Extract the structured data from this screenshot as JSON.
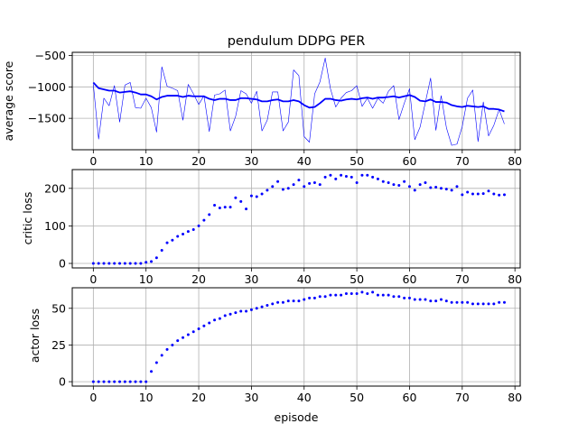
{
  "chart_data": [
    {
      "type": "line",
      "title": "pendulum DDPG PER",
      "xlabel": "",
      "ylabel": "average score",
      "xlim": [
        -4,
        81
      ],
      "ylim": [
        -2000,
        -450
      ],
      "xticks": [
        0,
        10,
        20,
        30,
        40,
        50,
        60,
        70,
        80
      ],
      "yticks": [
        -1500,
        -1000,
        -500
      ],
      "grid": true,
      "color": "#0000ff",
      "x": [
        0,
        1,
        2,
        3,
        4,
        5,
        6,
        7,
        8,
        9,
        10,
        11,
        12,
        13,
        14,
        15,
        16,
        17,
        18,
        19,
        20,
        21,
        22,
        23,
        24,
        25,
        26,
        27,
        28,
        29,
        30,
        31,
        32,
        33,
        34,
        35,
        36,
        37,
        38,
        39,
        40,
        41,
        42,
        43,
        44,
        45,
        46,
        47,
        48,
        49,
        50,
        51,
        52,
        53,
        54,
        55,
        56,
        57,
        58,
        59,
        60,
        61,
        62,
        63,
        64,
        65,
        66,
        67,
        68,
        69,
        70,
        71,
        72,
        73,
        74,
        75,
        76,
        77,
        78
      ],
      "series": [
        {
          "style": "thin-line",
          "values": [
            -960,
            -1830,
            -1180,
            -1300,
            -980,
            -1560,
            -970,
            -930,
            -1330,
            -1340,
            -1180,
            -1330,
            -1720,
            -680,
            -990,
            -1020,
            -1060,
            -1530,
            -960,
            -1110,
            -1280,
            -1140,
            -1710,
            -1130,
            -1110,
            -1050,
            -1700,
            -1470,
            -1060,
            -1110,
            -1260,
            -1070,
            -1700,
            -1530,
            -1080,
            -1080,
            -1700,
            -1560,
            -730,
            -820,
            -1790,
            -1880,
            -1110,
            -920,
            -540,
            -1030,
            -1320,
            -1180,
            -1090,
            -1060,
            -980,
            -1310,
            -1180,
            -1340,
            -1180,
            -1260,
            -1070,
            -980,
            -1520,
            -1260,
            -1030,
            -1840,
            -1640,
            -1250,
            -860,
            -1690,
            -1140,
            -1650,
            -1930,
            -1910,
            -1630,
            -1180,
            -1050,
            -1870,
            -1240,
            -1780,
            -1610,
            -1360,
            -1590
          ]
        },
        {
          "style": "thick-line",
          "values": [
            -930,
            -1020,
            -1040,
            -1060,
            -1060,
            -1090,
            -1080,
            -1070,
            -1090,
            -1120,
            -1120,
            -1150,
            -1200,
            -1160,
            -1140,
            -1140,
            -1140,
            -1160,
            -1140,
            -1150,
            -1150,
            -1150,
            -1190,
            -1210,
            -1190,
            -1190,
            -1210,
            -1210,
            -1180,
            -1180,
            -1190,
            -1200,
            -1230,
            -1230,
            -1210,
            -1200,
            -1230,
            -1230,
            -1210,
            -1230,
            -1290,
            -1330,
            -1320,
            -1260,
            -1190,
            -1190,
            -1210,
            -1220,
            -1200,
            -1190,
            -1200,
            -1180,
            -1170,
            -1190,
            -1170,
            -1170,
            -1160,
            -1150,
            -1170,
            -1150,
            -1130,
            -1160,
            -1220,
            -1230,
            -1200,
            -1240,
            -1240,
            -1250,
            -1290,
            -1310,
            -1320,
            -1300,
            -1310,
            -1320,
            -1310,
            -1350,
            -1350,
            -1360,
            -1390
          ]
        }
      ]
    },
    {
      "type": "scatter",
      "title": "",
      "xlabel": "",
      "ylabel": "critic loss",
      "xlim": [
        -4,
        81
      ],
      "ylim": [
        -12,
        250
      ],
      "xticks": [
        0,
        10,
        20,
        30,
        40,
        50,
        60,
        70,
        80
      ],
      "yticks": [
        0,
        100,
        200
      ],
      "grid": true,
      "color": "#0000ff",
      "x": [
        0,
        1,
        2,
        3,
        4,
        5,
        6,
        7,
        8,
        9,
        10,
        11,
        12,
        13,
        14,
        15,
        16,
        17,
        18,
        19,
        20,
        21,
        22,
        23,
        24,
        25,
        26,
        27,
        28,
        29,
        30,
        31,
        32,
        33,
        34,
        35,
        36,
        37,
        38,
        39,
        40,
        41,
        42,
        43,
        44,
        45,
        46,
        47,
        48,
        49,
        50,
        51,
        52,
        53,
        54,
        55,
        56,
        57,
        58,
        59,
        60,
        61,
        62,
        63,
        64,
        65,
        66,
        67,
        68,
        69,
        70,
        71,
        72,
        73,
        74,
        75,
        76,
        77,
        78
      ],
      "values": [
        0,
        0,
        0,
        0,
        0,
        0,
        0,
        0,
        0,
        0,
        3,
        5,
        15,
        35,
        55,
        62,
        72,
        78,
        85,
        90,
        100,
        115,
        130,
        155,
        148,
        150,
        150,
        175,
        165,
        145,
        180,
        178,
        185,
        195,
        205,
        218,
        197,
        200,
        210,
        222,
        205,
        213,
        215,
        210,
        230,
        235,
        225,
        235,
        232,
        230,
        215,
        235,
        235,
        230,
        225,
        218,
        215,
        210,
        208,
        218,
        205,
        195,
        210,
        215,
        202,
        203,
        200,
        198,
        195,
        205,
        183,
        190,
        185,
        185,
        186,
        193,
        185,
        182,
        183
      ]
    },
    {
      "type": "scatter",
      "title": "",
      "xlabel": "episode",
      "ylabel": "actor loss",
      "xlim": [
        -4,
        81
      ],
      "ylim": [
        -3,
        64
      ],
      "xticks": [
        0,
        10,
        20,
        30,
        40,
        50,
        60,
        70,
        80
      ],
      "yticks": [
        0,
        25,
        50
      ],
      "grid": true,
      "color": "#0000ff",
      "x": [
        0,
        1,
        2,
        3,
        4,
        5,
        6,
        7,
        8,
        9,
        10,
        11,
        12,
        13,
        14,
        15,
        16,
        17,
        18,
        19,
        20,
        21,
        22,
        23,
        24,
        25,
        26,
        27,
        28,
        29,
        30,
        31,
        32,
        33,
        34,
        35,
        36,
        37,
        38,
        39,
        40,
        41,
        42,
        43,
        44,
        45,
        46,
        47,
        48,
        49,
        50,
        51,
        52,
        53,
        54,
        55,
        56,
        57,
        58,
        59,
        60,
        61,
        62,
        63,
        64,
        65,
        66,
        67,
        68,
        69,
        70,
        71,
        72,
        73,
        74,
        75,
        76,
        77,
        78
      ],
      "values": [
        0,
        0,
        0,
        0,
        0,
        0,
        0,
        0,
        0,
        0,
        0,
        7,
        13,
        18,
        22,
        25,
        28,
        30,
        32,
        34,
        36,
        38,
        40,
        42,
        43,
        45,
        46,
        47,
        48,
        48,
        49,
        50,
        51,
        52,
        53,
        54,
        54,
        55,
        55,
        55,
        56,
        57,
        57,
        58,
        58,
        59,
        59,
        59,
        60,
        60,
        60,
        61,
        60,
        61,
        59,
        59,
        59,
        58,
        58,
        57,
        57,
        56,
        56,
        56,
        55,
        55,
        56,
        55,
        54,
        54,
        54,
        54,
        53,
        53,
        53,
        53,
        53,
        54,
        54
      ]
    }
  ]
}
